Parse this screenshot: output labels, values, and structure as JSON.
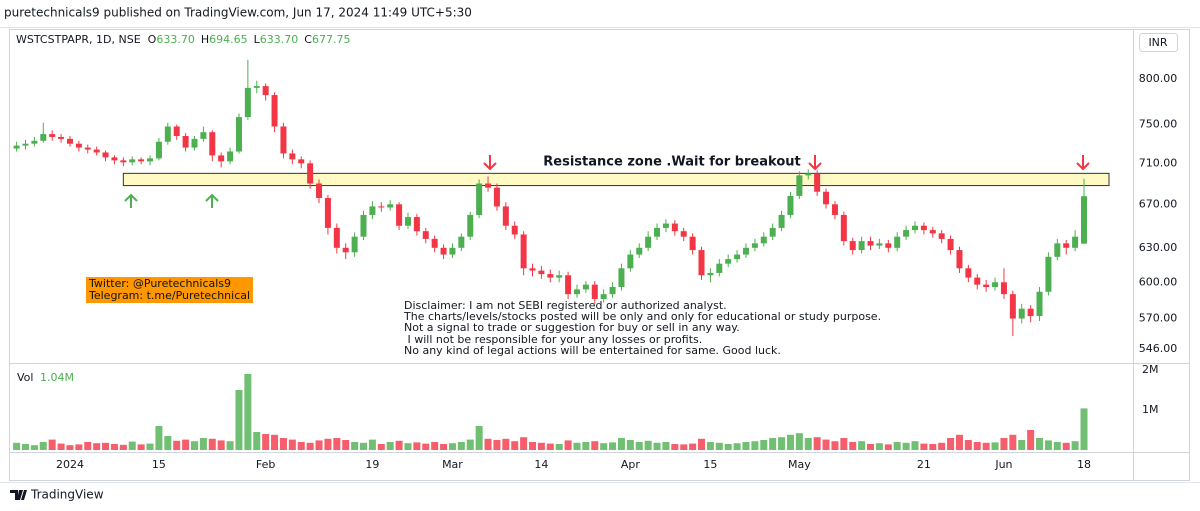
{
  "chart_data": {
    "type": "candlestick",
    "published": "puretechnicals9 published on TradingView.com, Jun 17, 2024 11:49 UTC+5:30",
    "symbol": "WSTCSTPAPR, 1D, NSE",
    "ohlc_legend": [
      {
        "label": "O",
        "value": "633.70"
      },
      {
        "label": "H",
        "value": "694.65"
      },
      {
        "label": "L",
        "value": "633.70"
      },
      {
        "label": "C",
        "value": "677.75"
      }
    ],
    "currency": "INR",
    "annotation": "Resistance zone .Wait for breakout",
    "zone": [
      688,
      700
    ],
    "social": [
      "Twitter: @Puretechnicals9",
      "Telegram: t.me/Puretechnical"
    ],
    "disclaimer": [
      "Disclaimer: I am not SEBI registered or authorized analyst.",
      "The charts/levels/stocks posted will be only and only for educational or study purpose.",
      "Not a signal to trade or suggestion for buy or sell in any way.",
      " I will not be responsible for your any losses or profits.",
      "No any kind of legal actions will be entertained for same. Good luck."
    ],
    "volume_name": "Vol",
    "volume_label": "1.04M",
    "brand": "TradingView",
    "up_color": "#4caf50",
    "down_color": "#f23645",
    "log_scale": true,
    "grid": false,
    "ylim": [
      536,
      855
    ],
    "yticks": [
      {
        "value": 546,
        "label": "546.00"
      },
      {
        "value": 570,
        "label": "570.00"
      },
      {
        "value": 600,
        "label": "600.00"
      },
      {
        "value": 630,
        "label": "630.00"
      },
      {
        "value": 670,
        "label": "670.00"
      },
      {
        "value": 710,
        "label": "710.00"
      },
      {
        "value": 750,
        "label": "750.00"
      },
      {
        "value": 800,
        "label": "800.00"
      }
    ],
    "volume_ylim": [
      0,
      2150000
    ],
    "volume_ticks": [
      {
        "value": 1000000,
        "label": "1M"
      },
      {
        "value": 2000000,
        "label": "2M"
      }
    ],
    "categories": [
      null,
      null,
      null,
      null,
      null,
      null,
      "2024",
      null,
      null,
      null,
      null,
      null,
      null,
      null,
      null,
      null,
      "15",
      null,
      null,
      null,
      null,
      null,
      null,
      null,
      null,
      null,
      null,
      null,
      "Feb",
      null,
      null,
      null,
      null,
      null,
      null,
      null,
      null,
      null,
      null,
      null,
      "19",
      null,
      null,
      null,
      null,
      null,
      null,
      null,
      null,
      "Mar",
      null,
      null,
      null,
      null,
      null,
      null,
      null,
      null,
      null,
      "14",
      null,
      null,
      null,
      null,
      null,
      null,
      null,
      null,
      null,
      "Apr",
      null,
      null,
      null,
      null,
      null,
      null,
      null,
      null,
      "15",
      null,
      null,
      null,
      null,
      null,
      null,
      null,
      null,
      null,
      "May",
      null,
      null,
      null,
      null,
      null,
      null,
      null,
      null,
      null,
      null,
      null,
      null,
      null,
      "21",
      null,
      null,
      null,
      null,
      null,
      null,
      null,
      null,
      "Jun",
      null,
      null,
      null,
      null,
      null,
      null,
      null,
      null,
      "18"
    ],
    "candles": [
      [
        725,
        732,
        722,
        728
      ],
      [
        728,
        734,
        724,
        730
      ],
      [
        730,
        737,
        727,
        733
      ],
      [
        733,
        752,
        731,
        740
      ],
      [
        740,
        744,
        733,
        737
      ],
      [
        737,
        740,
        731,
        735
      ],
      [
        735,
        738,
        727,
        730
      ],
      [
        730,
        733,
        722,
        726
      ],
      [
        726,
        729,
        720,
        724
      ],
      [
        724,
        727,
        718,
        721
      ],
      [
        721,
        723,
        712,
        716
      ],
      [
        716,
        718,
        709,
        713
      ],
      [
        713,
        716,
        707,
        711
      ],
      [
        711,
        717,
        708,
        714
      ],
      [
        714,
        716,
        709,
        712
      ],
      [
        712,
        718,
        708,
        715
      ],
      [
        715,
        736,
        713,
        732
      ],
      [
        732,
        752,
        729,
        748
      ],
      [
        748,
        750,
        734,
        738
      ],
      [
        738,
        741,
        722,
        726
      ],
      [
        726,
        738,
        723,
        735
      ],
      [
        735,
        748,
        732,
        742
      ],
      [
        742,
        744,
        712,
        718
      ],
      [
        718,
        721,
        706,
        712
      ],
      [
        712,
        726,
        709,
        722
      ],
      [
        722,
        762,
        720,
        758
      ],
      [
        758,
        822,
        755,
        790
      ],
      [
        790,
        798,
        784,
        792
      ],
      [
        792,
        795,
        776,
        782
      ],
      [
        782,
        785,
        742,
        748
      ],
      [
        748,
        752,
        715,
        720
      ],
      [
        720,
        724,
        709,
        714
      ],
      [
        714,
        717,
        705,
        710
      ],
      [
        710,
        713,
        685,
        690
      ],
      [
        690,
        694,
        671,
        676
      ],
      [
        676,
        679,
        642,
        648
      ],
      [
        648,
        652,
        625,
        630
      ],
      [
        630,
        634,
        620,
        626
      ],
      [
        626,
        644,
        622,
        640
      ],
      [
        640,
        664,
        637,
        660
      ],
      [
        660,
        673,
        656,
        668
      ],
      [
        668,
        672,
        663,
        667
      ],
      [
        667,
        674,
        664,
        670
      ],
      [
        670,
        672,
        646,
        650
      ],
      [
        650,
        662,
        647,
        658
      ],
      [
        658,
        661,
        641,
        645
      ],
      [
        645,
        648,
        634,
        638
      ],
      [
        638,
        641,
        626,
        630
      ],
      [
        630,
        633,
        620,
        624
      ],
      [
        624,
        634,
        621,
        630
      ],
      [
        630,
        643,
        627,
        640
      ],
      [
        640,
        663,
        637,
        660
      ],
      [
        660,
        694,
        657,
        690
      ],
      [
        690,
        697,
        682,
        686
      ],
      [
        686,
        690,
        664,
        668
      ],
      [
        668,
        672,
        646,
        650
      ],
      [
        650,
        654,
        638,
        642
      ],
      [
        642,
        645,
        606,
        612
      ],
      [
        612,
        616,
        605,
        610
      ],
      [
        610,
        614,
        603,
        607
      ],
      [
        607,
        611,
        600,
        604
      ],
      [
        604,
        610,
        600,
        606
      ],
      [
        606,
        609,
        586,
        590
      ],
      [
        590,
        598,
        587,
        594
      ],
      [
        594,
        601,
        591,
        598
      ],
      [
        598,
        601,
        582,
        586
      ],
      [
        586,
        594,
        583,
        590
      ],
      [
        590,
        600,
        587,
        596
      ],
      [
        596,
        616,
        593,
        612
      ],
      [
        612,
        628,
        609,
        624
      ],
      [
        624,
        634,
        621,
        630
      ],
      [
        630,
        645,
        627,
        640
      ],
      [
        640,
        652,
        637,
        648
      ],
      [
        648,
        656,
        644,
        652
      ],
      [
        652,
        655,
        641,
        645
      ],
      [
        645,
        648,
        636,
        640
      ],
      [
        640,
        643,
        624,
        628
      ],
      [
        628,
        631,
        602,
        606
      ],
      [
        606,
        612,
        600,
        608
      ],
      [
        608,
        620,
        605,
        616
      ],
      [
        616,
        624,
        613,
        620
      ],
      [
        620,
        628,
        617,
        624
      ],
      [
        624,
        634,
        621,
        630
      ],
      [
        630,
        638,
        627,
        634
      ],
      [
        634,
        644,
        631,
        640
      ],
      [
        640,
        652,
        637,
        648
      ],
      [
        648,
        664,
        645,
        660
      ],
      [
        660,
        682,
        657,
        678
      ],
      [
        678,
        702,
        675,
        698
      ],
      [
        698,
        704,
        694,
        700
      ],
      [
        700,
        703,
        678,
        682
      ],
      [
        682,
        685,
        666,
        670
      ],
      [
        670,
        673,
        656,
        660
      ],
      [
        660,
        663,
        632,
        636
      ],
      [
        636,
        639,
        624,
        628
      ],
      [
        628,
        640,
        625,
        636
      ],
      [
        636,
        640,
        628,
        632
      ],
      [
        632,
        638,
        629,
        634
      ],
      [
        634,
        637,
        626,
        630
      ],
      [
        630,
        644,
        627,
        640
      ],
      [
        640,
        650,
        637,
        646
      ],
      [
        646,
        654,
        643,
        650
      ],
      [
        650,
        653,
        642,
        646
      ],
      [
        646,
        649,
        639,
        643
      ],
      [
        643,
        646,
        634,
        638
      ],
      [
        638,
        641,
        624,
        628
      ],
      [
        628,
        631,
        608,
        612
      ],
      [
        612,
        615,
        600,
        604
      ],
      [
        604,
        607,
        594,
        598
      ],
      [
        598,
        602,
        592,
        596
      ],
      [
        596,
        604,
        593,
        600
      ],
      [
        600,
        612,
        586,
        590
      ],
      [
        590,
        593,
        556,
        570
      ],
      [
        570,
        582,
        566,
        578
      ],
      [
        578,
        581,
        567,
        572
      ],
      [
        572,
        596,
        568,
        592
      ],
      [
        592,
        626,
        589,
        622
      ],
      [
        622,
        638,
        619,
        634
      ],
      [
        634,
        637,
        624,
        630
      ],
      [
        630,
        646,
        627,
        640
      ],
      [
        633.7,
        694.65,
        633.7,
        677.75
      ]
    ],
    "volume": [
      180000,
      150000,
      120000,
      200000,
      260000,
      160000,
      120000,
      140000,
      200000,
      170000,
      180000,
      150000,
      130000,
      210000,
      140000,
      160000,
      600000,
      350000,
      230000,
      260000,
      220000,
      300000,
      280000,
      240000,
      220000,
      1500000,
      1900000,
      450000,
      400000,
      380000,
      300000,
      260000,
      200000,
      180000,
      240000,
      280000,
      300000,
      250000,
      200000,
      180000,
      260000,
      150000,
      200000,
      230000,
      170000,
      190000,
      160000,
      200000,
      150000,
      170000,
      200000,
      260000,
      600000,
      280000,
      250000,
      280000,
      220000,
      320000,
      200000,
      180000,
      160000,
      150000,
      240000,
      180000,
      200000,
      220000,
      170000,
      190000,
      300000,
      250000,
      200000,
      230000,
      180000,
      200000,
      150000,
      140000,
      160000,
      280000,
      200000,
      180000,
      150000,
      170000,
      200000,
      220000,
      250000,
      300000,
      320000,
      380000,
      420000,
      300000,
      320000,
      260000,
      220000,
      300000,
      200000,
      220000,
      150000,
      170000,
      140000,
      200000,
      180000,
      220000,
      160000,
      150000,
      180000,
      300000,
      380000,
      250000,
      200000,
      180000,
      190000,
      300000,
      380000,
      250000,
      500000,
      300000,
      240000,
      200000,
      180000,
      220000,
      1040000
    ]
  }
}
